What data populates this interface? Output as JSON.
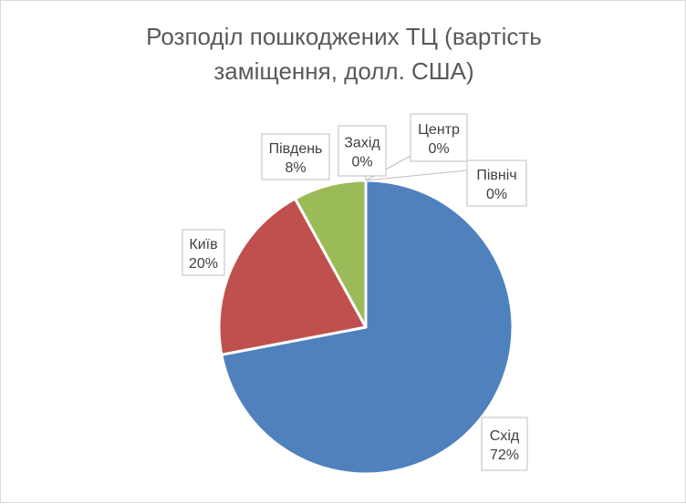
{
  "chart_data": {
    "type": "pie",
    "title_lines": [
      "Розподіл пошкоджених ТЦ (вартість",
      "заміщення, долл. США)"
    ],
    "slices": [
      {
        "label": "Схід",
        "value": 72,
        "display": "72%",
        "color": "#4f81bd"
      },
      {
        "label": "Київ",
        "value": 20,
        "display": "20%",
        "color": "#c0504d"
      },
      {
        "label": "Південь",
        "value": 8,
        "display": "8%",
        "color": "#9bbb59"
      },
      {
        "label": "Захід",
        "value": 0,
        "display": "0%",
        "color": "#8064a2"
      },
      {
        "label": "Центр",
        "value": 0,
        "display": "0%",
        "color": "#4bacc6"
      },
      {
        "label": "Північ",
        "value": 0,
        "display": "0%",
        "color": "#f79646"
      }
    ],
    "legend": "none"
  }
}
